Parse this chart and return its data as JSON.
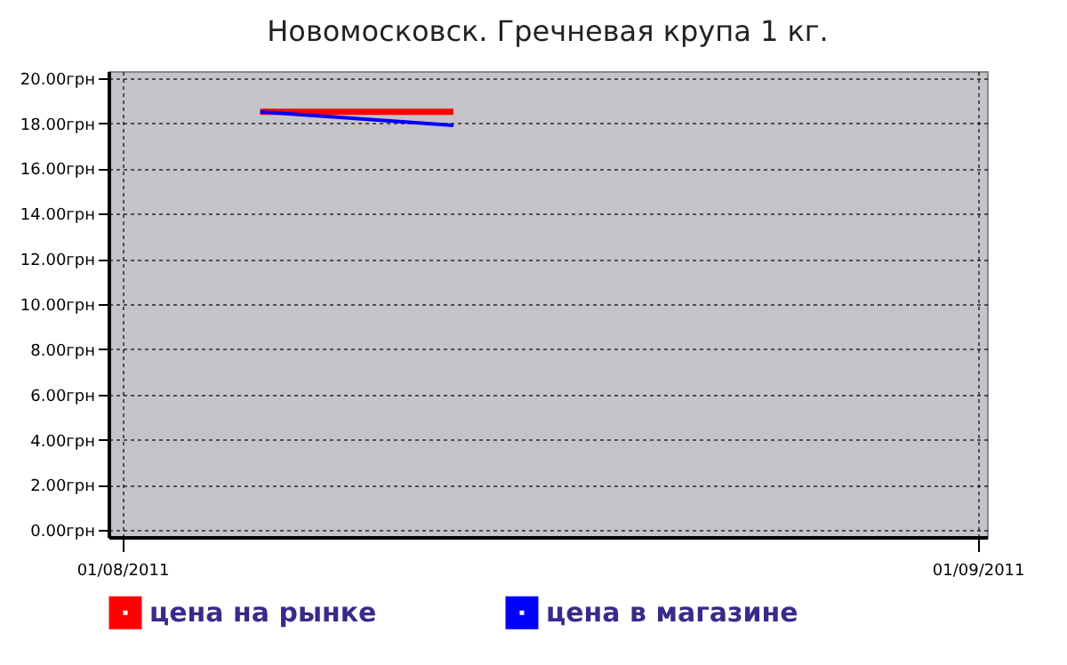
{
  "chart_data": {
    "type": "line",
    "title": "Новомосковск. Гречневая крупа 1 кг.",
    "series": [
      {
        "name": "цена на рынке",
        "color": "#ff0000",
        "x": [
          "2011-08-06",
          "2011-08-13"
        ],
        "values": [
          18.5,
          18.5
        ]
      },
      {
        "name": "цена в магазине",
        "color": "#0000ff",
        "x": [
          "2011-08-06",
          "2011-08-13"
        ],
        "values": [
          18.5,
          17.9
        ]
      }
    ],
    "xlim": [
      "2011-07-31T12:00",
      "2011-09-01T08:00"
    ],
    "xticks": [
      {
        "value": "2011-08-01",
        "label": "01/08/2011"
      },
      {
        "value": "2011-09-01",
        "label": "01/09/2011"
      }
    ],
    "ylim": [
      -0.3,
      20.3
    ],
    "yticks": [
      {
        "value": 0,
        "label": "0.00грн"
      },
      {
        "value": 2,
        "label": "2.00грн"
      },
      {
        "value": 4,
        "label": "4.00грн"
      },
      {
        "value": 6,
        "label": "6.00грн"
      },
      {
        "value": 8,
        "label": "8.00грн"
      },
      {
        "value": 10,
        "label": "10.00грн"
      },
      {
        "value": 12,
        "label": "12.00грн"
      },
      {
        "value": 14,
        "label": "14.00грн"
      },
      {
        "value": 16,
        "label": "16.00грн"
      },
      {
        "value": 18,
        "label": "18.00грн"
      },
      {
        "value": 20,
        "label": "20.00грн"
      }
    ],
    "grid": true,
    "legend": "bottom left",
    "marker": "none",
    "line_style": "solid"
  }
}
